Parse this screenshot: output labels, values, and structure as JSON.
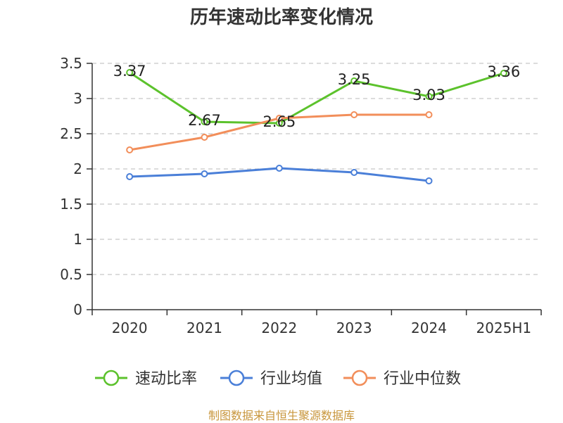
{
  "chart_data": {
    "type": "line",
    "title": "历年速动比率变化情况",
    "categories": [
      "2020",
      "2021",
      "2022",
      "2023",
      "2024",
      "2025H1"
    ],
    "ylim": [
      0,
      3.5
    ],
    "yticks": [
      "0",
      "0.5",
      "1",
      "1.5",
      "2",
      "2.5",
      "3",
      "3.5"
    ],
    "grid": true,
    "legend_position": "bottom",
    "series": [
      {
        "name": "速动比率",
        "color": "#5cc22c",
        "values": [
          3.37,
          2.67,
          2.65,
          3.25,
          3.03,
          3.36
        ],
        "labels": [
          "3.37",
          "2.67",
          "2.65",
          "3.25",
          "3.03",
          "3.36"
        ]
      },
      {
        "name": "行业均值",
        "color": "#4a7fd8",
        "values": [
          1.89,
          1.93,
          2.01,
          1.95,
          1.83,
          null
        ]
      },
      {
        "name": "行业中位数",
        "color": "#f28e5a",
        "values": [
          2.27,
          2.45,
          2.72,
          2.77,
          2.77,
          null
        ]
      }
    ]
  },
  "footer": {
    "source": "制图数据来自恒生聚源数据库"
  }
}
